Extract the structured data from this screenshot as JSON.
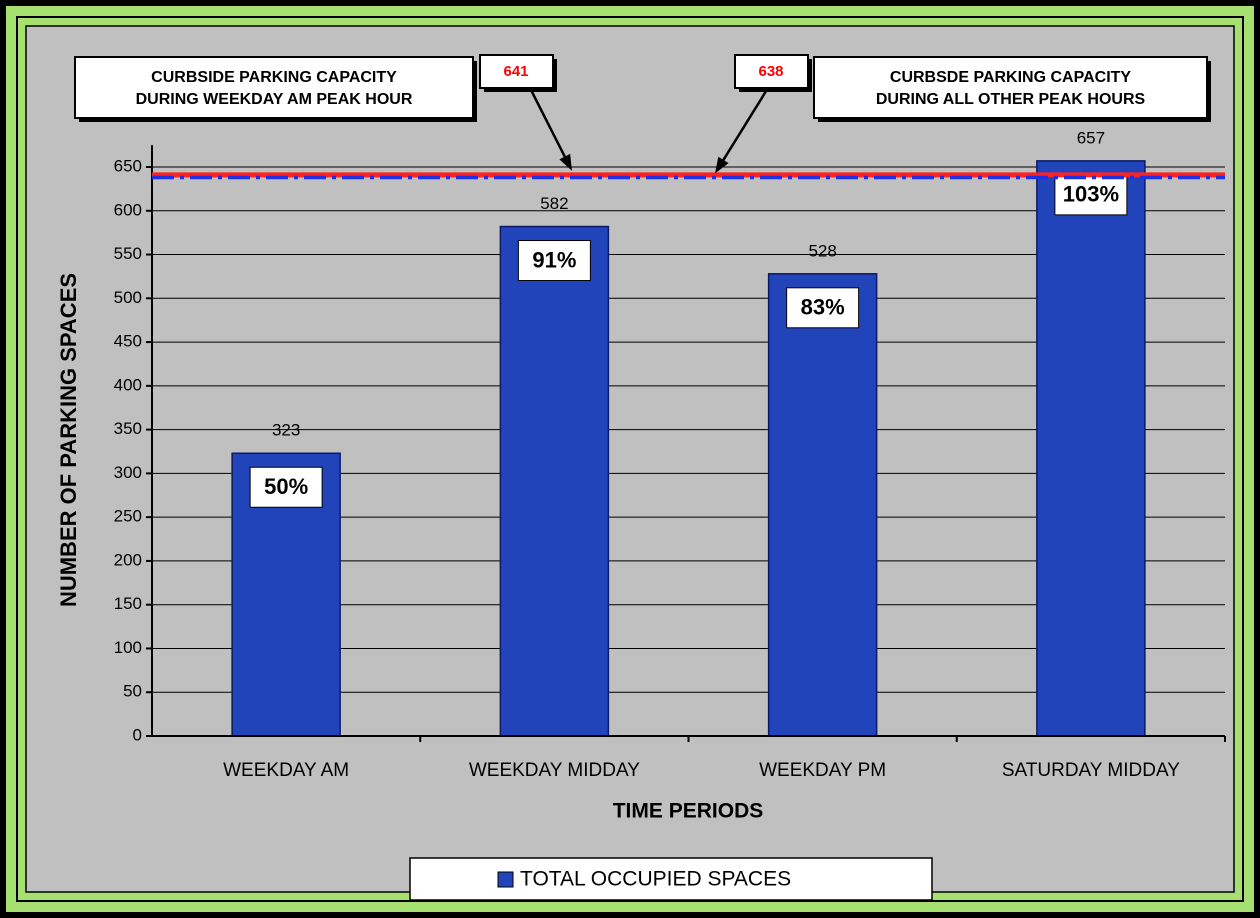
{
  "chart_data": {
    "type": "bar",
    "xlabel": "TIME PERIODS",
    "ylabel": "NUMBER OF PARKING SPACES",
    "categories": [
      "WEEKDAY AM",
      "WEEKDAY MIDDAY",
      "WEEKDAY PM",
      "SATURDAY MIDDAY"
    ],
    "series": [
      {
        "name": "TOTAL OCCUPIED SPACES",
        "color": "#2244bb",
        "values": [
          323,
          582,
          528,
          657
        ]
      }
    ],
    "occupancy_labels": [
      "50%",
      "91%",
      "83%",
      "103%"
    ],
    "reference_lines": [
      {
        "value": 641,
        "color": "#ff2020",
        "style": "solid",
        "text": [
          "CURBSIDE PARKING CAPACITY",
          "DURING WEEKDAY AM PEAK HOUR"
        ]
      },
      {
        "value": 638,
        "color": "#2030e0",
        "style": "dashdot",
        "text": [
          "CURBSDE PARKING CAPACITY",
          "DURING ALL OTHER PEAK HOURS"
        ]
      }
    ],
    "ylim": [
      0,
      675
    ],
    "yticks": [
      0,
      50,
      100,
      150,
      200,
      250,
      300,
      350,
      400,
      450,
      500,
      550,
      600,
      650
    ],
    "grid": true
  }
}
